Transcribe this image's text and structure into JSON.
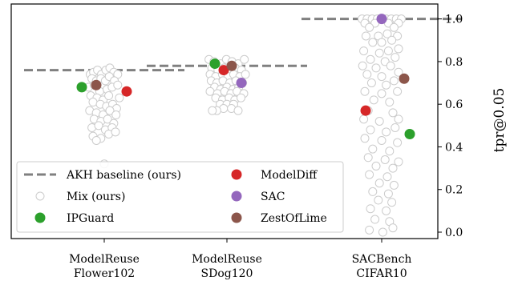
{
  "chart_data": {
    "type": "scatter",
    "ylabel": "tpr@0.05",
    "ylim": [
      -0.03,
      1.07
    ],
    "yticks": [
      0.0,
      0.2,
      0.4,
      0.6,
      0.8,
      1.0
    ],
    "ytick_labels": [
      "0.0",
      "0.2",
      "0.4",
      "0.6",
      "0.8",
      "1.0"
    ],
    "y_axis_side": "right",
    "grid": false,
    "legend_placement": "bottom-left",
    "categories": [
      {
        "line1": "ModelReuse",
        "line2": "Flower102"
      },
      {
        "line1": "ModelReuse",
        "line2": "SDog120"
      },
      {
        "line1": "SACBench",
        "line2": "CIFAR10"
      }
    ],
    "baseline": {
      "name": "AKH baseline (ours)",
      "color": "#808080",
      "values": [
        0.76,
        0.78,
        1.0
      ]
    },
    "mix": {
      "name": "Mix (ours)",
      "color": "#cccccc",
      "points": [
        [
          {
            "dx": -0.25,
            "y": 0.74
          },
          {
            "dx": -0.19,
            "y": 0.75
          },
          {
            "dx": -0.12,
            "y": 0.76
          },
          {
            "dx": -0.05,
            "y": 0.74
          },
          {
            "dx": 0.03,
            "y": 0.76
          },
          {
            "dx": 0.1,
            "y": 0.77
          },
          {
            "dx": 0.17,
            "y": 0.75
          },
          {
            "dx": 0.24,
            "y": 0.74
          },
          {
            "dx": -0.22,
            "y": 0.72
          },
          {
            "dx": -0.14,
            "y": 0.71
          },
          {
            "dx": -0.06,
            "y": 0.72
          },
          {
            "dx": 0.02,
            "y": 0.71
          },
          {
            "dx": 0.09,
            "y": 0.73
          },
          {
            "dx": 0.18,
            "y": 0.71
          },
          {
            "dx": -0.28,
            "y": 0.68
          },
          {
            "dx": -0.18,
            "y": 0.69
          },
          {
            "dx": -0.08,
            "y": 0.66
          },
          {
            "dx": 0.05,
            "y": 0.67
          },
          {
            "dx": 0.14,
            "y": 0.68
          },
          {
            "dx": 0.24,
            "y": 0.69
          },
          {
            "dx": -0.24,
            "y": 0.64
          },
          {
            "dx": -0.13,
            "y": 0.63
          },
          {
            "dx": -0.02,
            "y": 0.62
          },
          {
            "dx": 0.08,
            "y": 0.64
          },
          {
            "dx": 0.27,
            "y": 0.63
          },
          {
            "dx": -0.2,
            "y": 0.61
          },
          {
            "dx": -0.07,
            "y": 0.6
          },
          {
            "dx": 0.04,
            "y": 0.59
          },
          {
            "dx": 0.15,
            "y": 0.6
          },
          {
            "dx": 0.22,
            "y": 0.58
          },
          {
            "dx": -0.26,
            "y": 0.57
          },
          {
            "dx": -0.14,
            "y": 0.56
          },
          {
            "dx": -0.02,
            "y": 0.55
          },
          {
            "dx": 0.1,
            "y": 0.57
          },
          {
            "dx": 0.21,
            "y": 0.55
          },
          {
            "dx": -0.18,
            "y": 0.53
          },
          {
            "dx": -0.06,
            "y": 0.52
          },
          {
            "dx": 0.06,
            "y": 0.53
          },
          {
            "dx": 0.17,
            "y": 0.51
          },
          {
            "dx": -0.22,
            "y": 0.49
          },
          {
            "dx": -0.1,
            "y": 0.5
          },
          {
            "dx": 0.02,
            "y": 0.48
          },
          {
            "dx": 0.14,
            "y": 0.49
          },
          {
            "dx": -0.2,
            "y": 0.45
          },
          {
            "dx": -0.06,
            "y": 0.44
          },
          {
            "dx": 0.08,
            "y": 0.46
          },
          {
            "dx": 0.2,
            "y": 0.47
          },
          {
            "dx": -0.14,
            "y": 0.43
          },
          {
            "dx": 0.0,
            "y": 0.32
          }
        ],
        [
          {
            "dx": -0.32,
            "y": 0.81
          },
          {
            "dx": -0.23,
            "y": 0.8
          },
          {
            "dx": -0.11,
            "y": 0.79
          },
          {
            "dx": -0.01,
            "y": 0.81
          },
          {
            "dx": 0.09,
            "y": 0.8
          },
          {
            "dx": 0.2,
            "y": 0.79
          },
          {
            "dx": 0.31,
            "y": 0.81
          },
          {
            "dx": -0.27,
            "y": 0.77
          },
          {
            "dx": -0.16,
            "y": 0.76
          },
          {
            "dx": -0.05,
            "y": 0.77
          },
          {
            "dx": 0.06,
            "y": 0.76
          },
          {
            "dx": 0.15,
            "y": 0.77
          },
          {
            "dx": 0.26,
            "y": 0.76
          },
          {
            "dx": -0.3,
            "y": 0.74
          },
          {
            "dx": -0.2,
            "y": 0.73
          },
          {
            "dx": -0.08,
            "y": 0.74
          },
          {
            "dx": 0.02,
            "y": 0.73
          },
          {
            "dx": 0.12,
            "y": 0.74
          },
          {
            "dx": 0.23,
            "y": 0.73
          },
          {
            "dx": 0.33,
            "y": 0.74
          },
          {
            "dx": -0.28,
            "y": 0.71
          },
          {
            "dx": -0.18,
            "y": 0.7
          },
          {
            "dx": -0.07,
            "y": 0.71
          },
          {
            "dx": 0.05,
            "y": 0.7
          },
          {
            "dx": 0.16,
            "y": 0.71
          },
          {
            "dx": 0.28,
            "y": 0.7
          },
          {
            "dx": -0.22,
            "y": 0.68
          },
          {
            "dx": -0.11,
            "y": 0.67
          },
          {
            "dx": 0.0,
            "y": 0.68
          },
          {
            "dx": 0.11,
            "y": 0.67
          },
          {
            "dx": 0.21,
            "y": 0.68
          },
          {
            "dx": -0.3,
            "y": 0.66
          },
          {
            "dx": -0.17,
            "y": 0.65
          },
          {
            "dx": -0.04,
            "y": 0.66
          },
          {
            "dx": 0.07,
            "y": 0.65
          },
          {
            "dx": 0.18,
            "y": 0.66
          },
          {
            "dx": 0.3,
            "y": 0.65
          },
          {
            "dx": -0.2,
            "y": 0.63
          },
          {
            "dx": -0.08,
            "y": 0.62
          },
          {
            "dx": 0.04,
            "y": 0.63
          },
          {
            "dx": 0.14,
            "y": 0.62
          },
          {
            "dx": 0.25,
            "y": 0.63
          },
          {
            "dx": -0.12,
            "y": 0.6
          },
          {
            "dx": 0.0,
            "y": 0.6
          },
          {
            "dx": 0.12,
            "y": 0.6
          },
          {
            "dx": -0.06,
            "y": 0.58
          },
          {
            "dx": 0.08,
            "y": 0.58
          },
          {
            "dx": -0.18,
            "y": 0.57
          },
          {
            "dx": 0.2,
            "y": 0.57
          },
          {
            "dx": -0.26,
            "y": 0.57
          }
        ],
        [
          {
            "dx": -0.35,
            "y": 1.0
          },
          {
            "dx": -0.26,
            "y": 1.0
          },
          {
            "dx": -0.17,
            "y": 1.0
          },
          {
            "dx": -0.08,
            "y": 1.0
          },
          {
            "dx": 0.08,
            "y": 1.0
          },
          {
            "dx": 0.17,
            "y": 1.0
          },
          {
            "dx": 0.26,
            "y": 1.0
          },
          {
            "dx": 0.35,
            "y": 1.0
          },
          {
            "dx": -0.3,
            "y": 0.98
          },
          {
            "dx": -0.12,
            "y": 0.98
          },
          {
            "dx": 0.12,
            "y": 0.98
          },
          {
            "dx": 0.3,
            "y": 0.98
          },
          {
            "dx": -0.22,
            "y": 0.96
          },
          {
            "dx": 0.22,
            "y": 0.96
          },
          {
            "dx": -0.28,
            "y": 0.92
          },
          {
            "dx": -0.06,
            "y": 0.92
          },
          {
            "dx": 0.1,
            "y": 0.93
          },
          {
            "dx": 0.28,
            "y": 0.92
          },
          {
            "dx": -0.16,
            "y": 0.89
          },
          {
            "dx": 0.0,
            "y": 0.89
          },
          {
            "dx": 0.18,
            "y": 0.9
          },
          {
            "dx": -0.32,
            "y": 0.85
          },
          {
            "dx": -0.04,
            "y": 0.84
          },
          {
            "dx": 0.12,
            "y": 0.85
          },
          {
            "dx": 0.3,
            "y": 0.86
          },
          {
            "dx": -0.2,
            "y": 0.81
          },
          {
            "dx": 0.06,
            "y": 0.8
          },
          {
            "dx": 0.24,
            "y": 0.82
          },
          {
            "dx": -0.34,
            "y": 0.78
          },
          {
            "dx": -0.1,
            "y": 0.77
          },
          {
            "dx": 0.16,
            "y": 0.78
          },
          {
            "dx": -0.26,
            "y": 0.74
          },
          {
            "dx": 0.0,
            "y": 0.73
          },
          {
            "dx": 0.3,
            "y": 0.75
          },
          {
            "dx": -0.18,
            "y": 0.7
          },
          {
            "dx": 0.08,
            "y": 0.69
          },
          {
            "dx": 0.22,
            "y": 0.71
          },
          {
            "dx": -0.3,
            "y": 0.66
          },
          {
            "dx": 0.0,
            "y": 0.65
          },
          {
            "dx": 0.28,
            "y": 0.66
          },
          {
            "dx": -0.14,
            "y": 0.62
          },
          {
            "dx": 0.14,
            "y": 0.61
          },
          {
            "dx": -0.24,
            "y": 0.57
          },
          {
            "dx": 0.2,
            "y": 0.56
          },
          {
            "dx": -0.32,
            "y": 0.53
          },
          {
            "dx": -0.04,
            "y": 0.52
          },
          {
            "dx": 0.3,
            "y": 0.53
          },
          {
            "dx": -0.2,
            "y": 0.48
          },
          {
            "dx": 0.08,
            "y": 0.47
          },
          {
            "dx": 0.24,
            "y": 0.49
          },
          {
            "dx": -0.3,
            "y": 0.44
          },
          {
            "dx": 0.0,
            "y": 0.43
          },
          {
            "dx": 0.28,
            "y": 0.42
          },
          {
            "dx": -0.16,
            "y": 0.39
          },
          {
            "dx": 0.14,
            "y": 0.38
          },
          {
            "dx": -0.24,
            "y": 0.35
          },
          {
            "dx": 0.06,
            "y": 0.34
          },
          {
            "dx": 0.3,
            "y": 0.33
          },
          {
            "dx": -0.1,
            "y": 0.31
          },
          {
            "dx": 0.2,
            "y": 0.3
          },
          {
            "dx": -0.22,
            "y": 0.27
          },
          {
            "dx": 0.1,
            "y": 0.26
          },
          {
            "dx": -0.04,
            "y": 0.23
          },
          {
            "dx": 0.22,
            "y": 0.22
          },
          {
            "dx": -0.16,
            "y": 0.19
          },
          {
            "dx": 0.12,
            "y": 0.18
          },
          {
            "dx": -0.06,
            "y": 0.15
          },
          {
            "dx": 0.18,
            "y": 0.14
          },
          {
            "dx": -0.2,
            "y": 0.11
          },
          {
            "dx": 0.08,
            "y": 0.1
          },
          {
            "dx": -0.12,
            "y": 0.06
          },
          {
            "dx": 0.14,
            "y": 0.05
          },
          {
            "dx": -0.22,
            "y": 0.01
          },
          {
            "dx": 0.2,
            "y": 0.02
          },
          {
            "dx": 0.02,
            "y": 0.0
          }
        ]
      ]
    },
    "methods": [
      {
        "name": "IPGuard",
        "color": "#2ca02c",
        "values": [
          0.68,
          0.79,
          0.46
        ],
        "dx": [
          -0.28,
          -0.15,
          0.35
        ]
      },
      {
        "name": "ModelDiff",
        "color": "#d62728",
        "values": [
          0.66,
          0.76,
          0.57
        ],
        "dx": [
          0.28,
          -0.04,
          -0.2
        ]
      },
      {
        "name": "SAC",
        "color": "#9467bd",
        "values": [
          null,
          0.7,
          1.0
        ],
        "dx": [
          0,
          0.18,
          0.0
        ]
      },
      {
        "name": "ZestOfLime",
        "color": "#8c564b",
        "values": [
          0.69,
          0.78,
          0.72
        ],
        "dx": [
          -0.1,
          0.06,
          0.28
        ]
      }
    ]
  }
}
